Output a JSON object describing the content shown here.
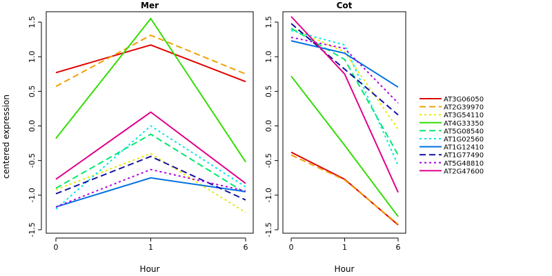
{
  "figure": {
    "ylabel": "centered expression",
    "legend": {
      "placement": "right",
      "entries": [
        {
          "name": "AT3G06050",
          "color": "#e00000",
          "dash": "solid"
        },
        {
          "name": "AT2G39970",
          "color": "#f0a000",
          "dash": "dashed"
        },
        {
          "name": "AT3G54110",
          "color": "#e8e800",
          "dash": "dotted"
        },
        {
          "name": "AT4G33350",
          "color": "#33dd00",
          "dash": "solid"
        },
        {
          "name": "AT5G08540",
          "color": "#00e870",
          "dash": "dashed"
        },
        {
          "name": "AT1G02560",
          "color": "#00e8e8",
          "dash": "dotted"
        },
        {
          "name": "AT1G12410",
          "color": "#0070e0",
          "dash": "solid"
        },
        {
          "name": "AT1G77490",
          "color": "#1010a0",
          "dash": "dashed"
        },
        {
          "name": "AT5G48810",
          "color": "#b000e0",
          "dash": "dotted"
        },
        {
          "name": "AT2G47600",
          "color": "#e0008a",
          "dash": "solid"
        }
      ]
    }
  },
  "chart_data": [
    {
      "type": "line",
      "title": "Mer",
      "xlabel": "Hour",
      "ylabel": "centered expression",
      "categories": [
        "0",
        "1",
        "6"
      ],
      "ylim": [
        -1.55,
        1.65
      ],
      "yticks": [
        1.5,
        1.0,
        0.5,
        0.0,
        -0.5,
        -1.0,
        -1.5
      ],
      "ytick_labels": [
        "1.5",
        "1.0",
        "0.5",
        "0.0",
        "-0.5",
        "-1.0",
        "-1.5"
      ],
      "grid": false,
      "series": [
        {
          "name": "AT3G06050",
          "values": [
            0.77,
            1.17,
            0.64
          ]
        },
        {
          "name": "AT2G39970",
          "values": [
            0.57,
            1.31,
            0.75
          ]
        },
        {
          "name": "AT3G54110",
          "values": [
            -0.92,
            -0.4,
            -1.25
          ]
        },
        {
          "name": "AT4G33350",
          "values": [
            -0.18,
            1.55,
            -0.52
          ]
        },
        {
          "name": "AT5G08540",
          "values": [
            -0.9,
            -0.12,
            -0.97
          ]
        },
        {
          "name": "AT1G02560",
          "values": [
            -1.2,
            0.0,
            -0.88
          ]
        },
        {
          "name": "AT1G12410",
          "values": [
            -1.17,
            -0.75,
            -0.95
          ]
        },
        {
          "name": "AT1G77490",
          "values": [
            -0.98,
            -0.44,
            -1.07
          ]
        },
        {
          "name": "AT5G48810",
          "values": [
            -1.17,
            -0.63,
            -0.94
          ]
        },
        {
          "name": "AT2G47600",
          "values": [
            -0.77,
            0.2,
            -0.83
          ]
        }
      ]
    },
    {
      "type": "line",
      "title": "Cot",
      "xlabel": "Hour",
      "ylabel": "",
      "categories": [
        "0",
        "1",
        "6"
      ],
      "ylim": [
        -1.55,
        1.65
      ],
      "yticks": [
        1.5,
        1.0,
        0.5,
        0.0,
        -0.5,
        -1.0,
        -1.5
      ],
      "ytick_labels": [
        "1.5",
        "1.0",
        "0.5",
        "0.0",
        "-0.5",
        "-1.0",
        "-1.5"
      ],
      "grid": false,
      "series": [
        {
          "name": "AT3G06050",
          "values": [
            -0.38,
            -0.77,
            -1.43
          ]
        },
        {
          "name": "AT2G39970",
          "values": [
            -0.42,
            -0.78,
            -1.42
          ]
        },
        {
          "name": "AT3G54110",
          "values": [
            1.41,
            1.07,
            -0.05
          ]
        },
        {
          "name": "AT4G33350",
          "values": [
            0.72,
            -0.28,
            -1.31
          ]
        },
        {
          "name": "AT5G08540",
          "values": [
            1.41,
            0.96,
            -0.42
          ]
        },
        {
          "name": "AT1G02560",
          "values": [
            1.38,
            1.17,
            -0.57
          ]
        },
        {
          "name": "AT1G12410",
          "values": [
            1.23,
            1.05,
            0.56
          ]
        },
        {
          "name": "AT1G77490",
          "values": [
            1.48,
            0.82,
            0.16
          ]
        },
        {
          "name": "AT5G48810",
          "values": [
            1.28,
            1.12,
            0.33
          ]
        },
        {
          "name": "AT2G47600",
          "values": [
            1.58,
            0.75,
            -0.96
          ]
        }
      ]
    }
  ]
}
